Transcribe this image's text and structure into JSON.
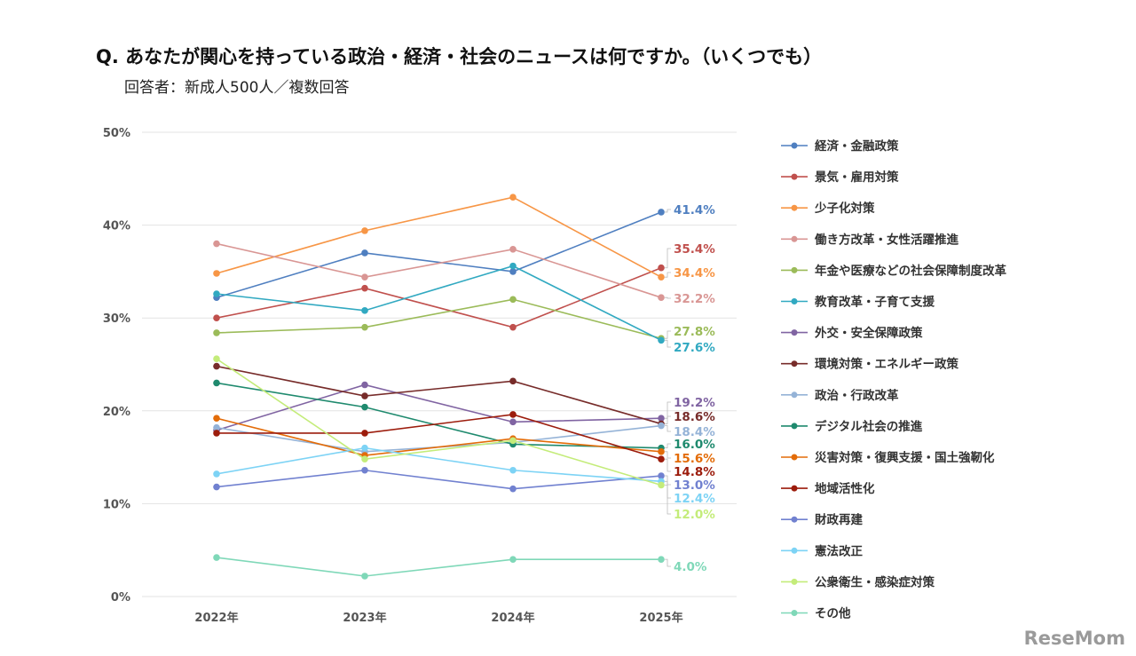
{
  "title": "Q. あなたが関心を持っている政治・経済・社会のニュースは何ですか。（いくつでも）",
  "subtitle": "回答者：新成人500人／複数回答",
  "logo": "ReseMom",
  "chart_data": {
    "type": "line",
    "categories": [
      "2022年",
      "2023年",
      "2024年",
      "2025年"
    ],
    "ylim": [
      0,
      50
    ],
    "yticks": [
      "0%",
      "10%",
      "20%",
      "30%",
      "40%",
      "50%"
    ],
    "grid": true,
    "legend": "right",
    "series": [
      {
        "name": "経済・金融政策",
        "color": "#4f7fc0",
        "values": [
          32.2,
          37.0,
          35.0,
          41.4
        ],
        "label": "41.4%"
      },
      {
        "name": "景気・雇用対策",
        "color": "#c0504d",
        "values": [
          30.0,
          33.2,
          29.0,
          35.4
        ],
        "label": "35.4%"
      },
      {
        "name": "少子化対策",
        "color": "#f79646",
        "values": [
          34.8,
          39.4,
          43.0,
          34.4
        ],
        "label": "34.4%"
      },
      {
        "name": "働き方改革・女性活躍推進",
        "color": "#d99694",
        "values": [
          38.0,
          34.4,
          37.4,
          32.2
        ],
        "label": "32.2%"
      },
      {
        "name": "年金や医療などの社会保障制度改革",
        "color": "#9bbb59",
        "values": [
          28.4,
          29.0,
          32.0,
          27.8
        ],
        "label": "27.8%"
      },
      {
        "name": "教育改革・子育て支援",
        "color": "#31a9c1",
        "values": [
          32.6,
          30.8,
          35.6,
          27.6
        ],
        "label": "27.6%"
      },
      {
        "name": "外交・安全保障政策",
        "color": "#8064a2",
        "values": [
          17.9,
          22.8,
          18.8,
          19.2
        ],
        "label": "19.2%"
      },
      {
        "name": "環境対策・エネルギー政策",
        "color": "#772c2a",
        "values": [
          24.8,
          21.6,
          23.2,
          18.6
        ],
        "label": "18.6%"
      },
      {
        "name": "政治・行政改革",
        "color": "#95b3d7",
        "values": [
          18.2,
          15.6,
          16.6,
          18.4
        ],
        "label": "18.4%"
      },
      {
        "name": "デジタル社会の推進",
        "color": "#1f8a6e",
        "values": [
          23.0,
          20.4,
          16.4,
          16.0
        ],
        "label": "16.0%"
      },
      {
        "name": "災害対策・復興支援・国土強靭化",
        "color": "#e36c09",
        "values": [
          19.2,
          15.2,
          17.0,
          15.6
        ],
        "label": "15.6%"
      },
      {
        "name": "地域活性化",
        "color": "#9c1c0c",
        "values": [
          17.6,
          17.6,
          19.6,
          14.8
        ],
        "label": "14.8%"
      },
      {
        "name": "財政再建",
        "color": "#7181d0",
        "values": [
          11.8,
          13.6,
          11.6,
          13.0
        ],
        "label": "13.0%"
      },
      {
        "name": "憲法改正",
        "color": "#7dd3f5",
        "values": [
          13.2,
          16.0,
          13.6,
          12.4
        ],
        "label": "12.4%"
      },
      {
        "name": "公衆衛生・感染症対策",
        "color": "#c4ec7a",
        "values": [
          25.6,
          14.8,
          16.8,
          12.0
        ],
        "label": "12.0%"
      },
      {
        "name": "その他",
        "color": "#7fd8b8",
        "values": [
          4.2,
          2.2,
          4.0,
          4.0
        ],
        "label": "4.0%"
      }
    ]
  }
}
